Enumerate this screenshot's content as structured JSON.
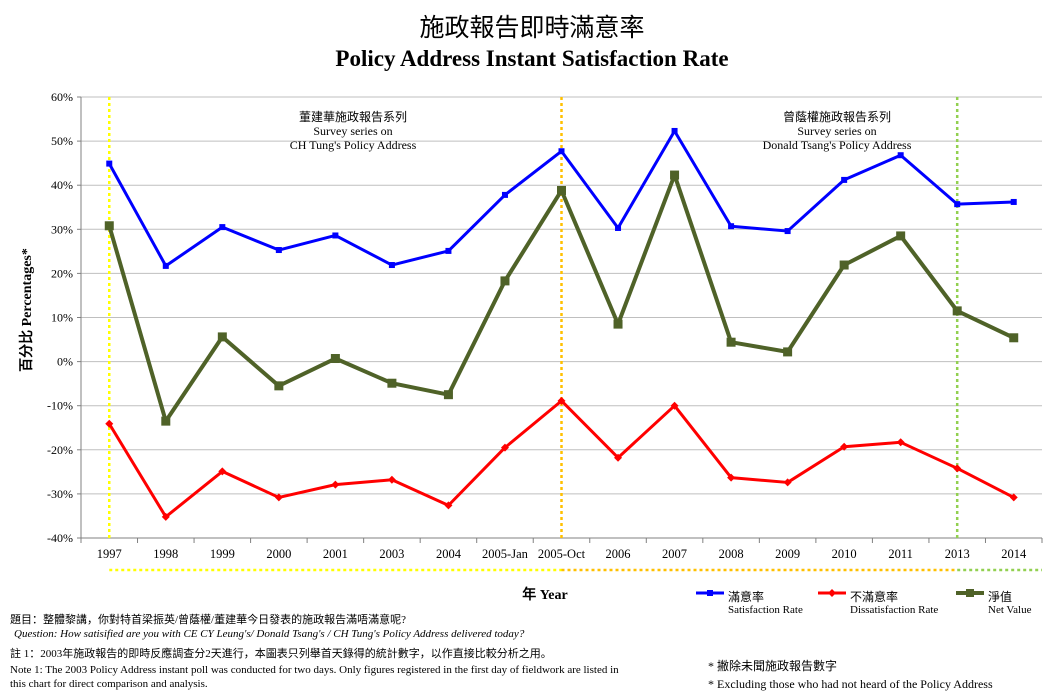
{
  "title_zh": "施政報告即時滿意率",
  "title_en": "Policy Address  Instant Satisfaction Rate",
  "chart_data": {
    "type": "line",
    "title": "施政報告即時滿意率 Policy Address  Instant Satisfaction Rate",
    "xlabel": "年 Year",
    "ylabel": "百分比 Percentages*",
    "ylim": [
      -40,
      60
    ],
    "y_ticks": [
      "60%",
      "50%",
      "40%",
      "30%",
      "20%",
      "10%",
      "0%",
      "-10%",
      "-20%",
      "-30%",
      "-40%"
    ],
    "categories": [
      "1997",
      "1998",
      "1999",
      "2000",
      "2001",
      "2003",
      "2004",
      "2005-Jan",
      "2005-Oct",
      "2006",
      "2007",
      "2008",
      "2009",
      "2010",
      "2011",
      "2013",
      "2014"
    ],
    "grid": true,
    "legend_position": "bottom-right",
    "series": [
      {
        "name": "滿意率 Satisfaction Rate",
        "color": "#0000ff",
        "marker": "square",
        "values": [
          44.9,
          21.7,
          30.5,
          25.3,
          28.6,
          21.9,
          25.1,
          37.8,
          47.7,
          30.3,
          52.3,
          30.7,
          29.6,
          41.2,
          46.8,
          35.7,
          36.2
        ]
      },
      {
        "name": "不滿意率 Dissatisfaction Rate",
        "color": "#ff0000",
        "marker": "diamond",
        "values": [
          -14.1,
          -35.2,
          -24.9,
          -30.8,
          -27.9,
          -26.8,
          -32.6,
          -19.5,
          -8.9,
          -21.8,
          -10.0,
          -26.3,
          -27.4,
          -19.3,
          -18.3,
          -24.2,
          -30.8
        ]
      },
      {
        "name": "淨值 Net Value",
        "color": "#4f6228",
        "marker": "square",
        "values": [
          30.8,
          -13.5,
          5.6,
          -5.5,
          0.7,
          -4.9,
          -7.5,
          18.3,
          38.8,
          8.5,
          42.3,
          4.4,
          2.2,
          21.9,
          28.5,
          11.5,
          5.4
        ]
      }
    ],
    "annotations": {
      "tung_zh": "董建華施政報告系列",
      "tung_en1": "Survey series on",
      "tung_en2": "CH Tung's Policy Address",
      "tsang_zh": "曾蔭權施政報告系列",
      "tsang_en1": "Survey series on",
      "tsang_en2": "Donald Tsang's Policy Address"
    },
    "vertical_markers": [
      {
        "at": "1997",
        "color": "#ffff00"
      },
      {
        "at": "2005-Oct",
        "color": "#ffc000"
      },
      {
        "at": "2013",
        "color": "#92d050"
      }
    ]
  },
  "legend": {
    "sat_zh": "滿意率",
    "sat_en": "Satisfaction Rate",
    "dis_zh": "不滿意率",
    "dis_en": "Dissatisfaction Rate",
    "net_zh": "淨值",
    "net_en": "Net Value"
  },
  "notes": {
    "question_zh": "題目：整體黎講，你對特首梁振英/曾蔭權/董建華今日發表的施政報告滿唔滿意呢?",
    "question_en": "Question: How satisified are you with CE CY Leung's/ Donald Tsang's / CH Tung's Policy Address  delivered today?",
    "note1_zh": "註 1：2003年施政報告的即時反應調查分2天進行，本圖表只列舉首天錄得的統計數字，以作直接比較分析之用。",
    "note1_en_1": "Note 1: The 2003 Policy Address instant poll was conducted for two days. Only figures registered  in the first day of fieldwork are listed in",
    "note1_en_2": "this chart for direct comparison and analysis.",
    "footnote_zh": "* 撇除未聞施政報告數字",
    "footnote_en": "* Excluding  those who had not heard of the Policy  Address"
  },
  "colors": {
    "satisfaction": "#0000ff",
    "dissatisfaction": "#ff0000",
    "net": "#4f6228",
    "tung_marker": "#ffff00",
    "tsang_marker": "#ffc000",
    "leung_marker": "#92d050"
  }
}
